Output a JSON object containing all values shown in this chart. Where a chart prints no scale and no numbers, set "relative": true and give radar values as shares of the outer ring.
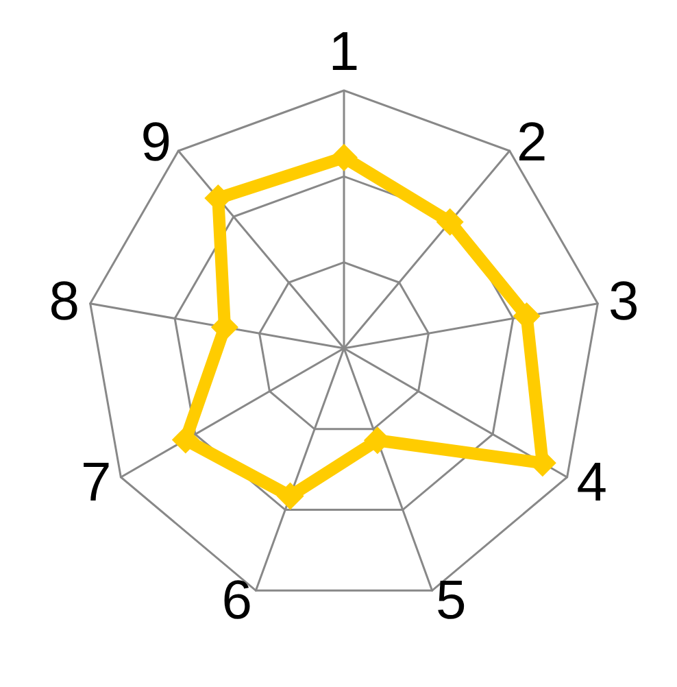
{
  "chart_data": {
    "type": "radar",
    "relative": true,
    "categories": [
      "1",
      "2",
      "3",
      "4",
      "5",
      "6",
      "7",
      "8",
      "9"
    ],
    "series": [
      {
        "color": "#ffcc00",
        "values": [
          0.74,
          0.64,
          0.72,
          0.89,
          0.38,
          0.61,
          0.71,
          0.47,
          0.76
        ]
      }
    ],
    "marker": "diamond",
    "line_style": "solid"
  }
}
